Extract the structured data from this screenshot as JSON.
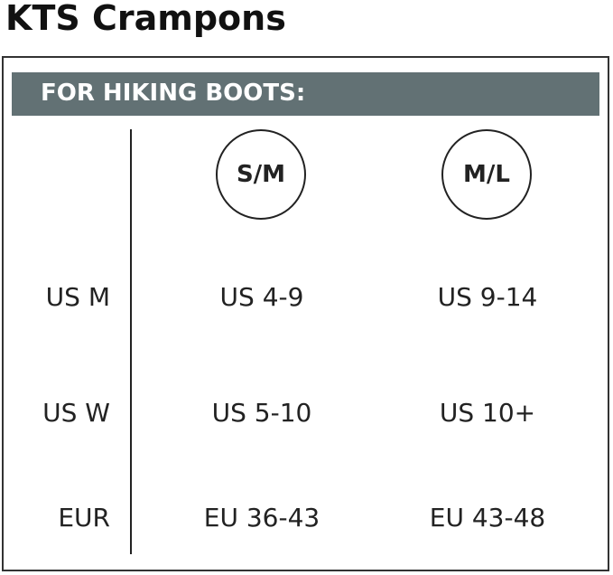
{
  "header": {
    "title": "KTS Crampons"
  },
  "table": {
    "banner": "FOR HIKING BOOTS:",
    "columns": [
      "S/M",
      "M/L"
    ],
    "rows": [
      {
        "label": "US M",
        "cells": [
          "US 4-9",
          "US 9-14"
        ]
      },
      {
        "label": "US W",
        "cells": [
          "US 5-10",
          "US 10+"
        ]
      },
      {
        "label": "EUR",
        "cells": [
          "EU 36-43",
          "EU 43-48"
        ]
      }
    ]
  }
}
